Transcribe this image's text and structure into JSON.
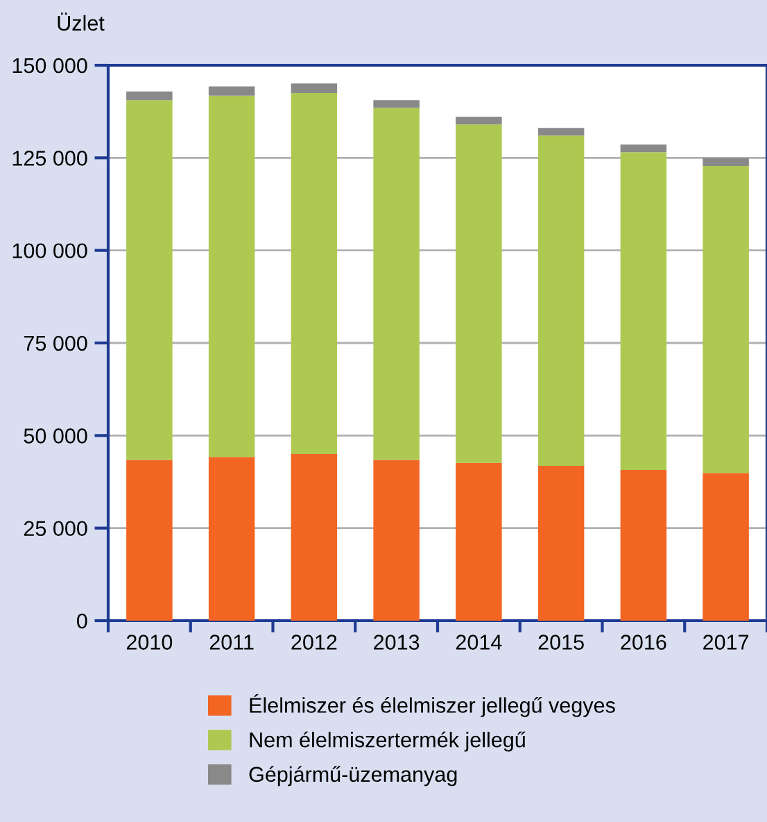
{
  "chart_data": {
    "type": "bar",
    "stacked": true,
    "ylabel": "Üzlet",
    "categories": [
      "2010",
      "2011",
      "2012",
      "2013",
      "2014",
      "2015",
      "2016",
      "2017"
    ],
    "series": [
      {
        "name": "Élelmiszer és élelmiszer jellegű vegyes",
        "color": "#f26522",
        "values": [
          43400,
          44200,
          45000,
          43400,
          42600,
          41800,
          40700,
          39900
        ]
      },
      {
        "name": "Nem élelmiszertermék jellegű",
        "color": "#adc952",
        "values": [
          97200,
          97600,
          97500,
          95100,
          91400,
          89200,
          85800,
          82900
        ]
      },
      {
        "name": "Gépjármű-üzemanyag",
        "color": "#898989",
        "values": [
          2300,
          2500,
          2600,
          2100,
          2100,
          2100,
          2100,
          2100
        ]
      }
    ],
    "ylim": [
      0,
      150000
    ],
    "yticks": [
      {
        "value": 0,
        "label": "0"
      },
      {
        "value": 25000,
        "label": "25 000"
      },
      {
        "value": 50000,
        "label": "50 000"
      },
      {
        "value": 75000,
        "label": "75 000"
      },
      {
        "value": 100000,
        "label": "100 000"
      },
      {
        "value": 125000,
        "label": "125 000"
      },
      {
        "value": 150000,
        "label": "150 000"
      }
    ],
    "grid": "y",
    "legend": "bottom"
  }
}
